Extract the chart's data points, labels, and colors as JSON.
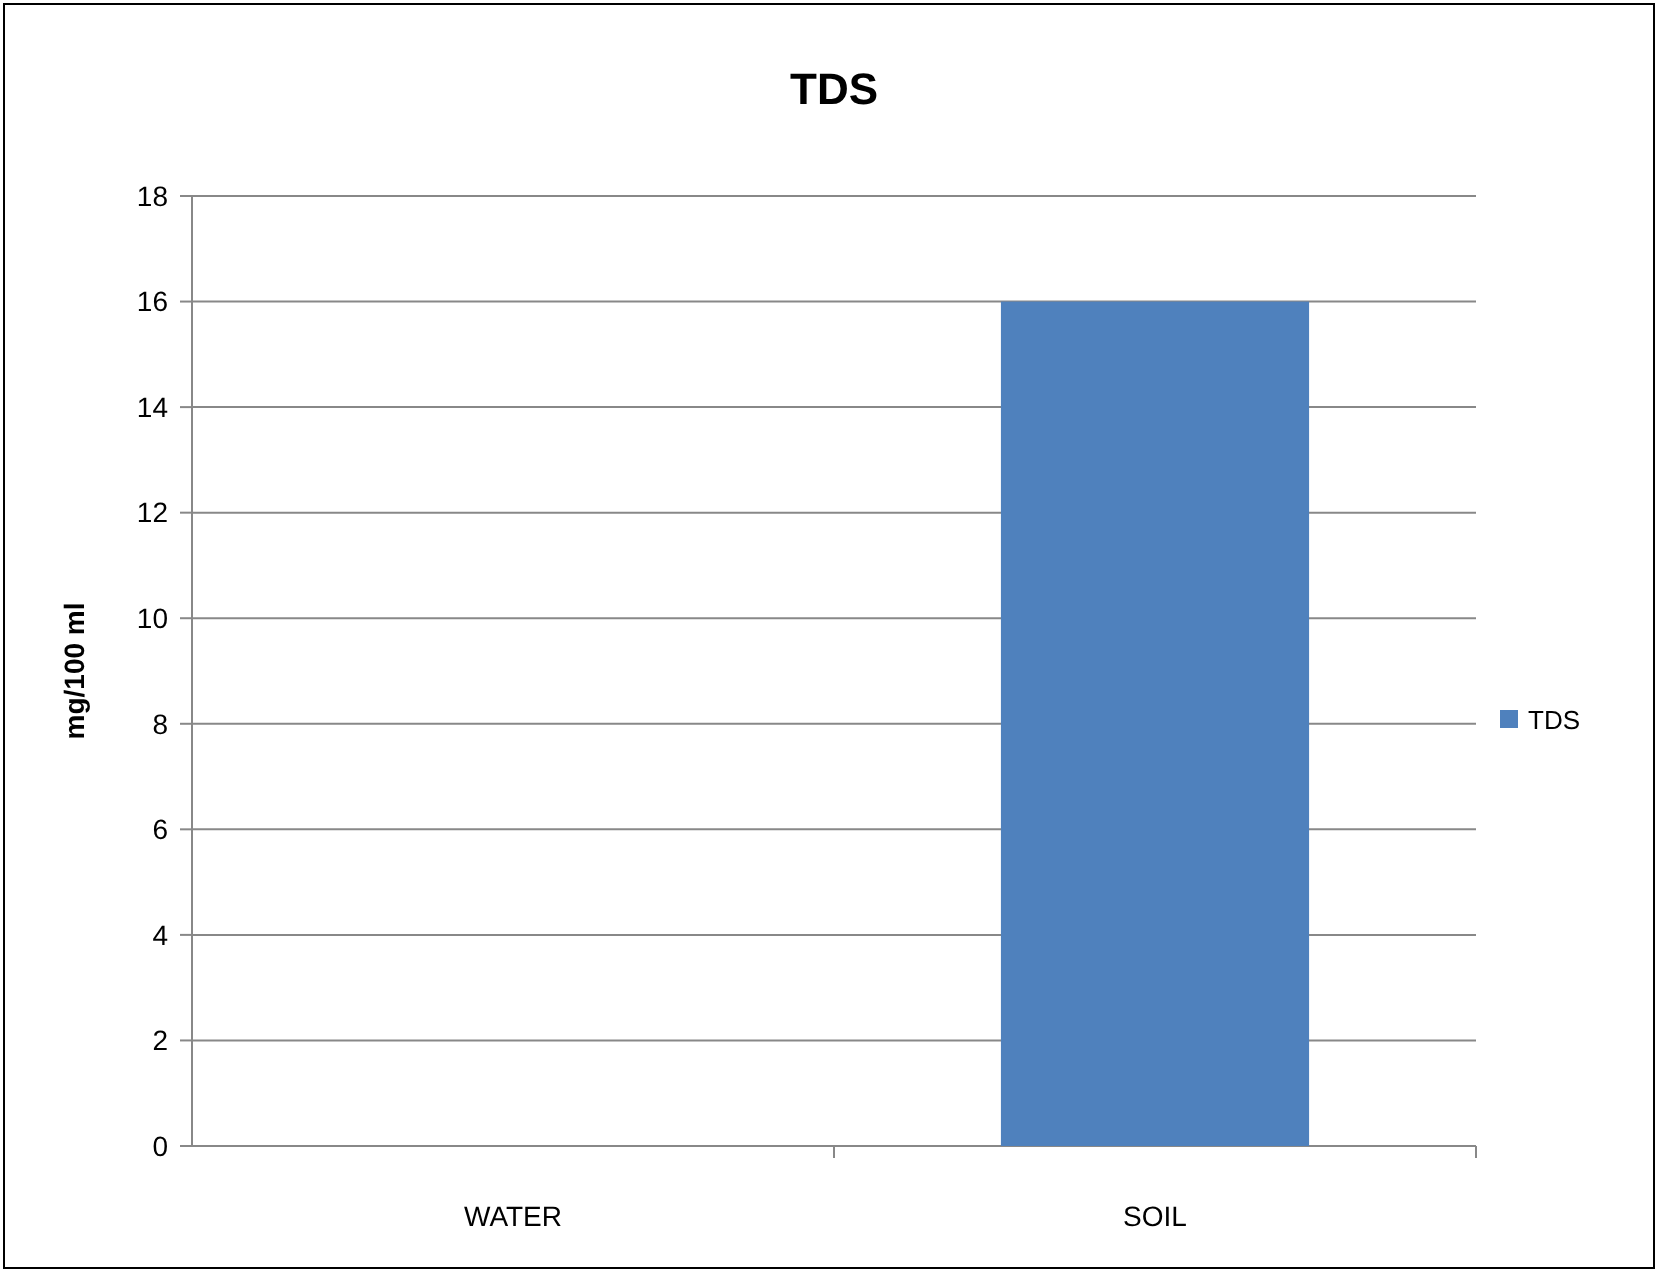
{
  "chart_data": {
    "type": "bar",
    "title": "TDS",
    "ylabel": "mg/100 ml",
    "categories": [
      "WATER",
      "SOIL"
    ],
    "series": [
      {
        "name": "TDS",
        "color": "#4f81bd",
        "values": [
          0,
          16
        ]
      }
    ],
    "ylim": [
      0,
      18
    ],
    "yticks": [
      0,
      2,
      4,
      6,
      8,
      10,
      12,
      14,
      16,
      18
    ],
    "grid": "y",
    "legend": "right"
  }
}
